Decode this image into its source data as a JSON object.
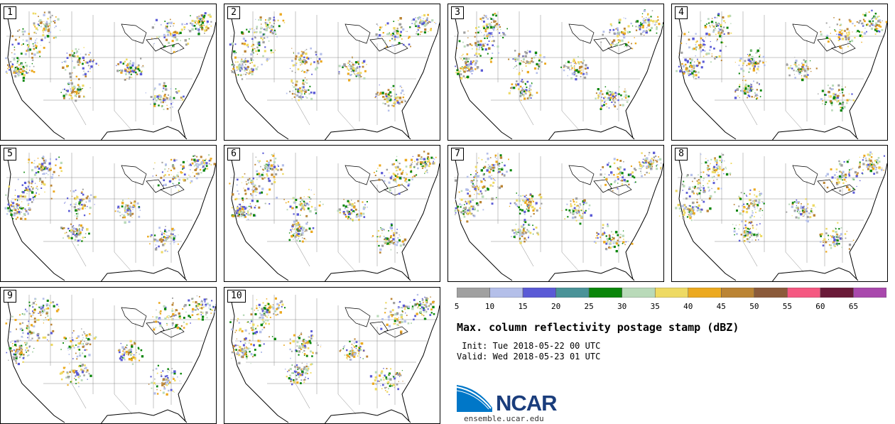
{
  "panels": [
    {
      "label": "1"
    },
    {
      "label": "2"
    },
    {
      "label": "3"
    },
    {
      "label": "4"
    },
    {
      "label": "5"
    },
    {
      "label": "6"
    },
    {
      "label": "7"
    },
    {
      "label": "8"
    },
    {
      "label": "9"
    },
    {
      "label": "10"
    }
  ],
  "colorbar": {
    "colors": [
      "#a0a0a0",
      "#b4bfe9",
      "#5a5ad6",
      "#4a9398",
      "#0a860a",
      "#b9dab9",
      "#eeda63",
      "#eca91f",
      "#bb8434",
      "#8b5a3a",
      "#f55881",
      "#6a1a38",
      "#a948ad"
    ],
    "ticks": [
      "5",
      "10",
      "15",
      "20",
      "25",
      "30",
      "35",
      "40",
      "45",
      "50",
      "55",
      "60",
      "65"
    ]
  },
  "title": "Max. column reflectivity postage stamp (dBZ)",
  "init": " Init: Tue 2018-05-22 00 UTC",
  "valid": "Valid: Wed 2018-05-23 01 UTC",
  "logo": {
    "text": "NCAR",
    "color": "#1a3d7c",
    "accent": "#0077c8"
  },
  "site": "ensemble.ucar.edu"
}
